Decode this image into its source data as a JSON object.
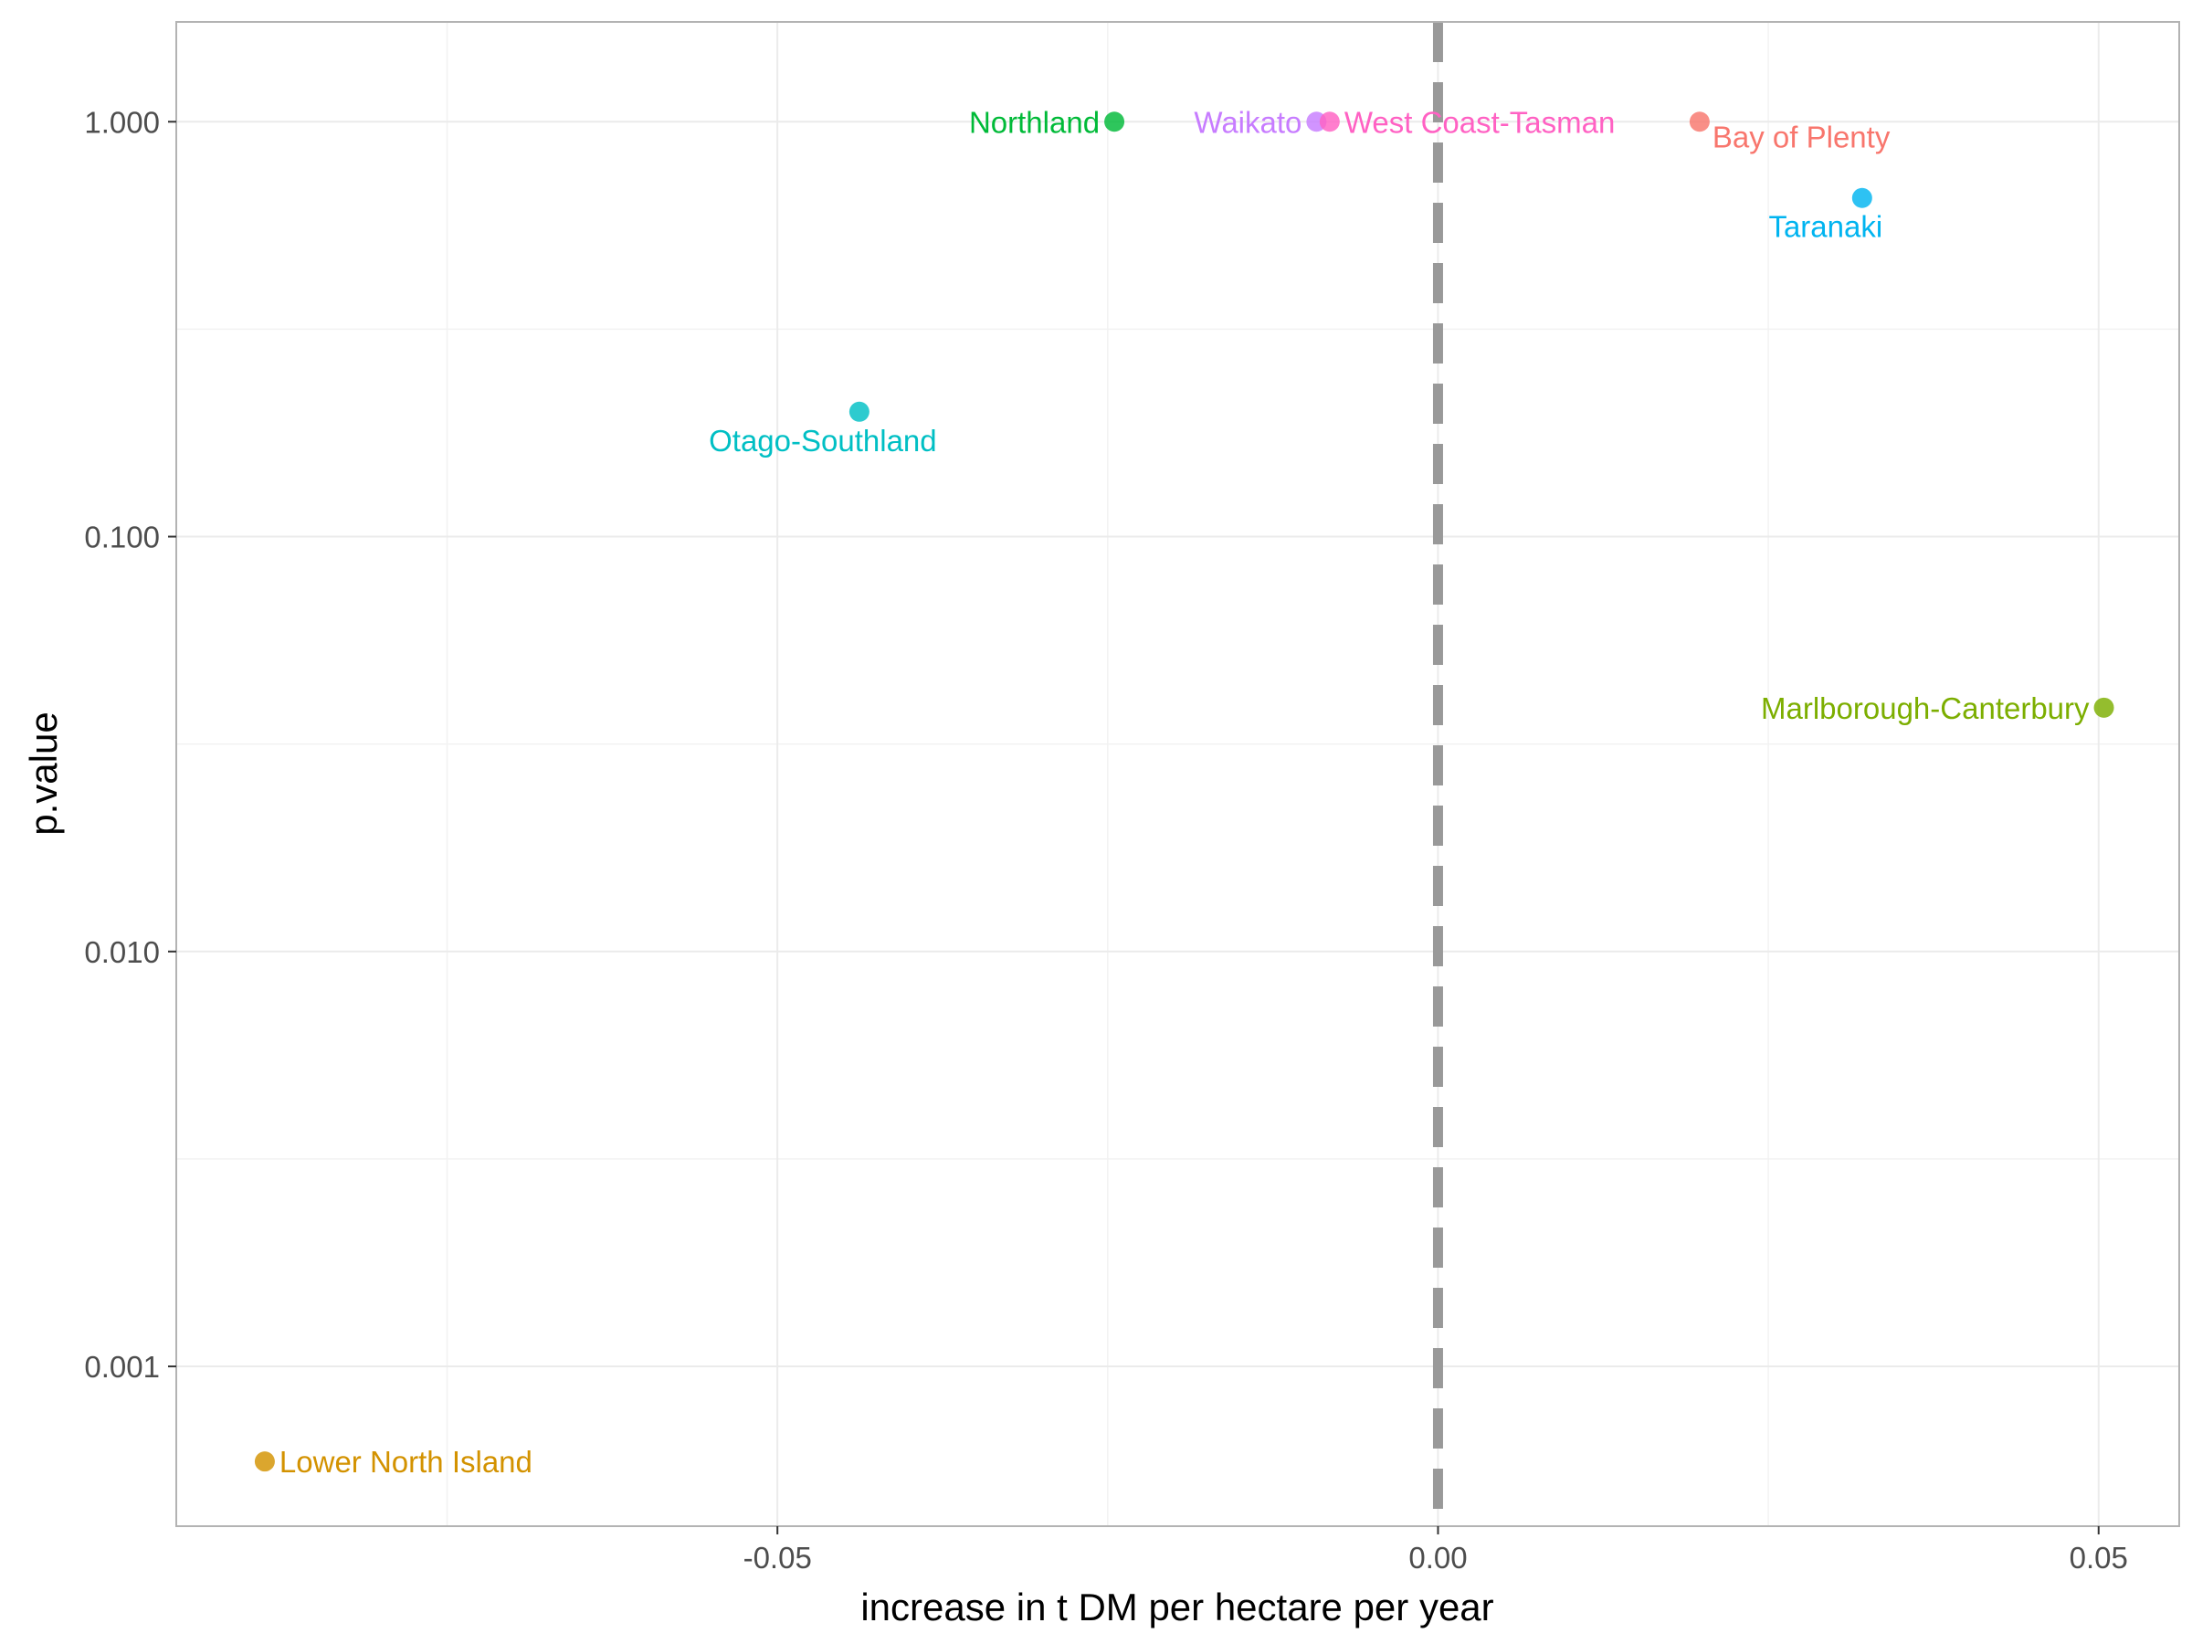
{
  "chart_data": {
    "type": "scatter",
    "title": "",
    "xlabel": "increase in t DM per hectare per year",
    "ylabel": "p.value",
    "x_scale": "linear",
    "y_scale": "log10",
    "xlim": [
      -0.0955,
      0.0561
    ],
    "ylim": [
      0.000412,
      1.74
    ],
    "x_ticks": [
      {
        "value": -0.05,
        "label": "-0.05"
      },
      {
        "value": 0,
        "label": "0.00"
      },
      {
        "value": 0.05,
        "label": "0.05"
      }
    ],
    "y_ticks": [
      {
        "value": 0.001,
        "label": "0.001"
      },
      {
        "value": 0.01,
        "label": "0.010"
      },
      {
        "value": 0.1,
        "label": "0.100"
      },
      {
        "value": 1,
        "label": "1.000"
      }
    ],
    "grid": true,
    "legend": "none",
    "reference_line": {
      "axis": "x",
      "value": 0,
      "style": "dashed",
      "color": "#999999"
    },
    "points": [
      {
        "name": "Bay of Plenty",
        "x": 0.0198,
        "y": 1.0,
        "color": "#F8766D",
        "label_pos": "below-right"
      },
      {
        "name": "Lower North Island",
        "x": -0.0888,
        "y": 0.00059,
        "color": "#D39200",
        "label_pos": "right"
      },
      {
        "name": "Marlborough-Canterbury",
        "x": 0.0504,
        "y": 0.0387,
        "color": "#7CAE00",
        "label_pos": "left"
      },
      {
        "name": "Northland",
        "x": -0.0245,
        "y": 1.0,
        "color": "#00BA38",
        "label_pos": "left"
      },
      {
        "name": "Otago-Southland",
        "x": -0.0438,
        "y": 0.2,
        "color": "#00BFC4",
        "label_pos": "below"
      },
      {
        "name": "Taranaki",
        "x": 0.0321,
        "y": 0.655,
        "color": "#00B4F0",
        "label_pos": "below"
      },
      {
        "name": "Waikato",
        "x": -0.0092,
        "y": 1.0,
        "color": "#C77CFF",
        "label_pos": "left"
      },
      {
        "name": "West Coast-Tasman",
        "x": -0.0082,
        "y": 1.0,
        "color": "#FF61C3",
        "label_pos": "right"
      }
    ]
  }
}
